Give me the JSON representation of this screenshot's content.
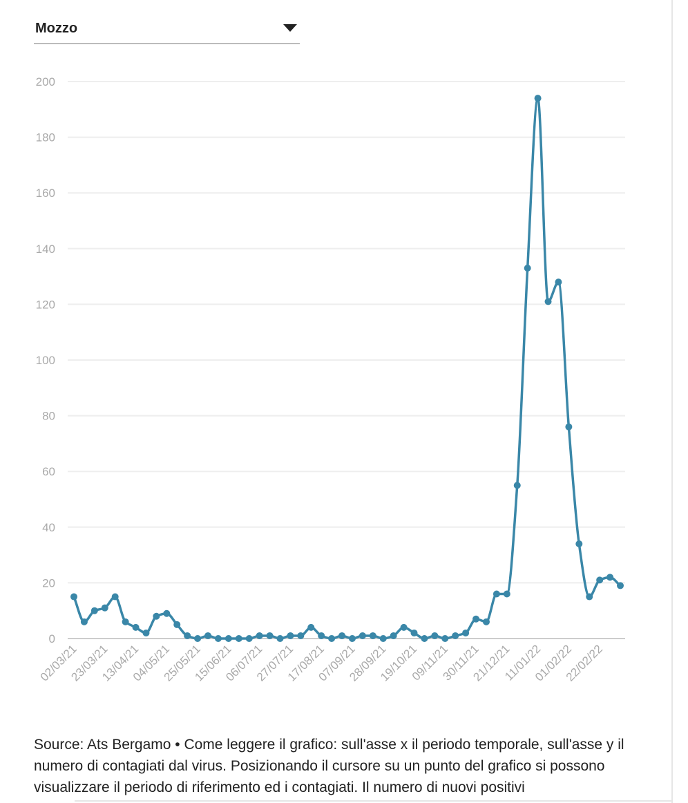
{
  "dropdown": {
    "label": "Mozzo"
  },
  "chart_data": {
    "type": "line",
    "categories": [
      "02/03/21",
      null,
      null,
      "23/03/21",
      null,
      null,
      "13/04/21",
      null,
      null,
      "04/05/21",
      null,
      null,
      "25/05/21",
      null,
      null,
      "15/06/21",
      null,
      null,
      "06/07/21",
      null,
      null,
      "27/07/21",
      null,
      null,
      "17/08/21",
      null,
      null,
      "07/09/21",
      null,
      null,
      "28/09/21",
      null,
      null,
      "19/10/21",
      null,
      null,
      "09/11/21",
      null,
      null,
      "30/11/21",
      null,
      null,
      "21/12/21",
      null,
      null,
      "11/01/22",
      null,
      null,
      "01/02/22",
      null,
      null,
      "22/02/22",
      null,
      null
    ],
    "values": [
      15,
      6,
      10,
      11,
      15,
      6,
      4,
      2,
      8,
      9,
      5,
      1,
      0,
      1,
      0,
      0,
      0,
      0,
      1,
      1,
      0,
      1,
      1,
      4,
      1,
      0,
      1,
      0,
      1,
      1,
      0,
      1,
      4,
      2,
      0,
      1,
      0,
      1,
      2,
      7,
      6,
      16,
      16,
      55,
      133,
      194,
      121,
      128,
      76,
      34,
      15,
      21,
      22,
      19
    ],
    "color": "#3a87a8",
    "ylim": [
      0,
      200
    ],
    "yticks": [
      0,
      20,
      40,
      60,
      80,
      100,
      120,
      140,
      160,
      180,
      200
    ],
    "grid": true
  },
  "source": "Source: Ats Bergamo • Come leggere il grafico: sull'asse x il periodo temporale, sull'asse y il numero di contagiati dal virus. Posizionando il cursore su un punto del grafico si possono visualizzare il periodo di riferimento ed i contagiati. Il numero di nuovi positivi"
}
